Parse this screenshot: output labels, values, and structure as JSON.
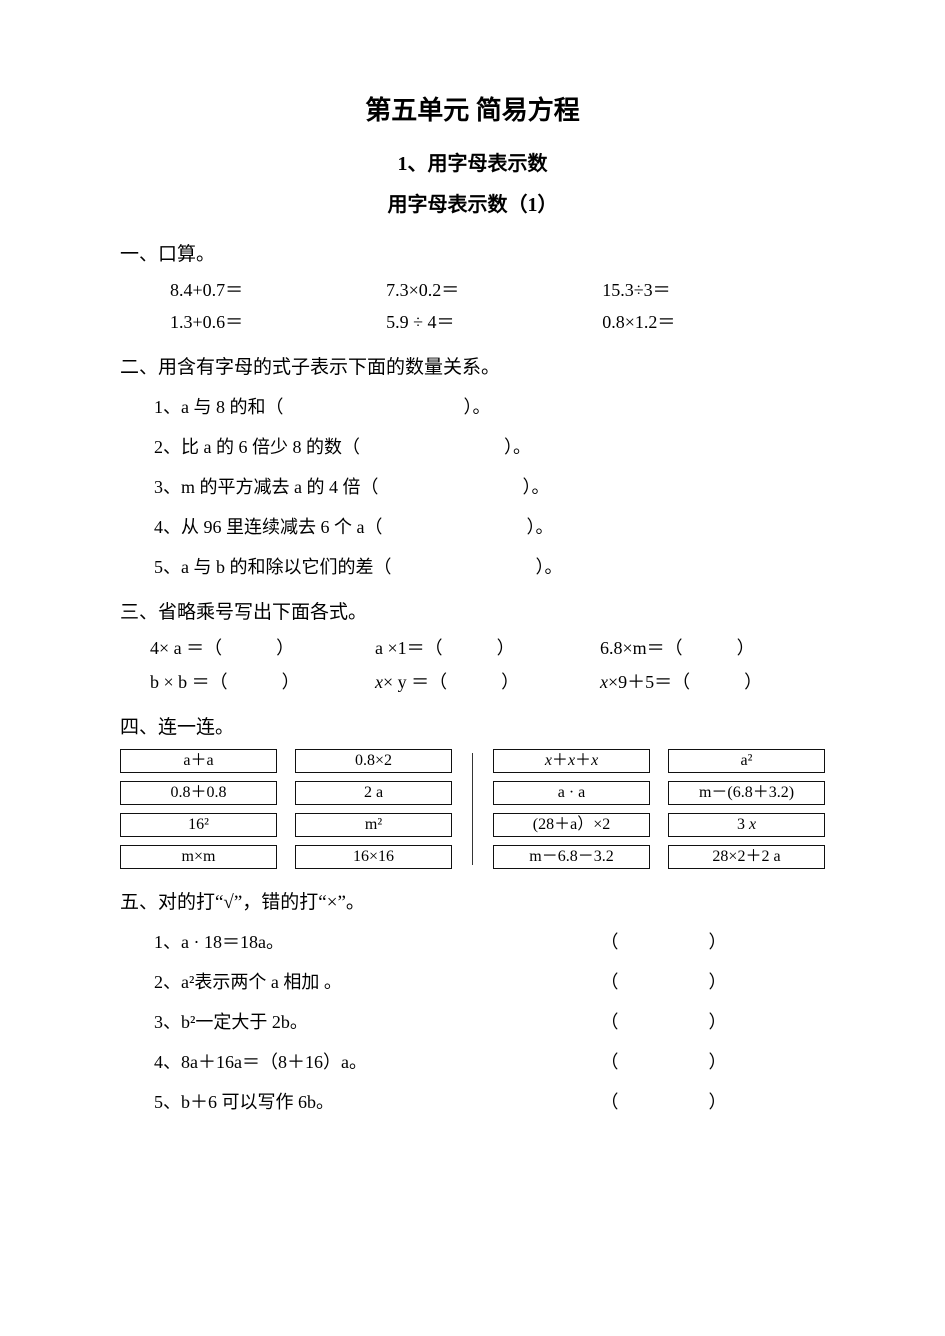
{
  "title": "第五单元   简易方程",
  "subtitle": "1、用字母表示数",
  "subsubtitle": "用字母表示数（1）",
  "s1": {
    "head": "一、口算。",
    "r1c1": "8.4+0.7＝",
    "r1c2": "7.3×0.2＝",
    "r1c3": "15.3÷3＝",
    "r2c1": "1.3+0.6＝",
    "r2c2": "5.9 ÷ 4＝",
    "r2c3": "0.8×1.2＝"
  },
  "s2": {
    "head": "二、用含有字母的式子表示下面的数量关系。",
    "i1": "1、a 与 8 的和（　　　　　　　　　　）。",
    "i2": "2、比 a 的 6 倍少 8 的数（　　　　　　　　）。",
    "i3": "3、m 的平方减去 a 的 4 倍（　　　　　　　　）。",
    "i4": "4、从 96 里连续减去 6 个 a（　　　　　　　　）。",
    "i5": "5、a 与 b 的和除以它们的差（　　　　　　　　）。"
  },
  "s3": {
    "head": "三、省略乘号写出下面各式。",
    "r1c1": "4× a ＝（　　　）",
    "r1c2": "a ×1＝（　　　）",
    "r1c3": "6.8×m＝（　　　）",
    "r2c1": "b × b ＝（　　　）",
    "r2c2_pre": "x",
    "r2c2_post": "× y ＝（　　　）",
    "r2c3_pre": "x",
    "r2c3_post": "×9＋5＝（　　　）"
  },
  "s4": {
    "head": "四、连一连。",
    "left": {
      "colA": [
        "a＋a",
        "0.8＋0.8",
        "16²",
        "m×m"
      ],
      "colB": [
        "0.8×2",
        "2 a",
        "m²",
        "16×16"
      ]
    },
    "right": {
      "colA_html": [
        "<span class='ital'>x</span>＋<span class='ital'>x</span>＋<span class='ital'>x</span>",
        "a · a",
        "(28＋a）×2",
        "m－6.8－3.2"
      ],
      "colB_html": [
        "a²",
        "m－(6.8＋3.2)",
        "3 <span class='ital'>x</span>",
        "28×2＋2 a"
      ]
    }
  },
  "s5": {
    "head": "五、对的打“√”，错的打“×”。",
    "items": [
      "1、a · 18＝18a。",
      "2、a²表示两个 a 相加 。",
      "3、b²一定大于 2b。",
      "4、8a＋16a＝（8＋16）a。",
      "5、b＋6 可以写作 6b。"
    ],
    "bracket": "（　　）"
  }
}
